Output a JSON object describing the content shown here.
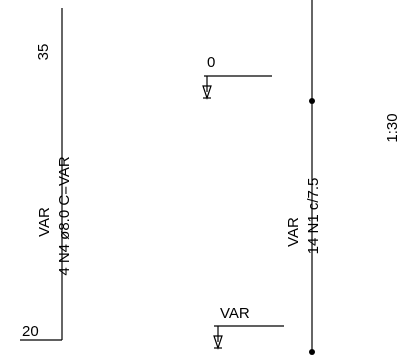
{
  "drawing": {
    "scale": "1:30",
    "column_left": {
      "top_dimension": "35",
      "bottom_dimension": "20",
      "variable_label": "VAR",
      "bar_spec": "4 N4 ø8.0  C=VAR"
    },
    "column_right": {
      "variable_label": "VAR",
      "stirrup_spec": "14 N1 c/7.5"
    },
    "level_markers": {
      "upper": "0",
      "lower": "VAR"
    }
  }
}
